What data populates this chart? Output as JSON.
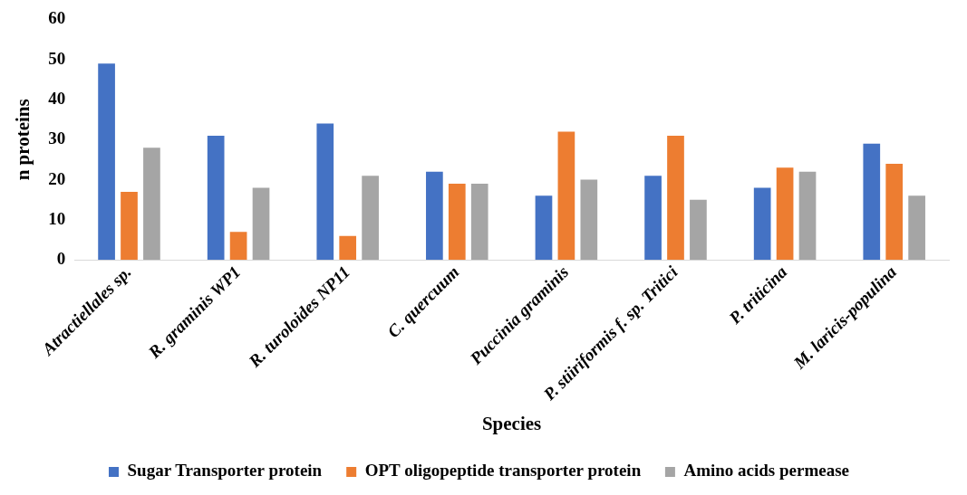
{
  "chart_data": {
    "type": "bar",
    "xlabel": "Species",
    "ylabel": "n proteins",
    "categories": [
      "Atractiellales sp.",
      "R. graminis WP1",
      "R. turoloides NP11",
      "C. quercuum",
      "Puccinia graminis",
      "P. stiiriformis f. sp. Tritici",
      "P. triticina",
      "M. laricis-populina"
    ],
    "series": [
      {
        "name": "Sugar Transporter protein",
        "color": "#4472c4",
        "values": [
          49,
          31,
          34,
          22,
          16,
          21,
          18,
          29
        ]
      },
      {
        "name": "OPT oligopeptide transporter protein",
        "color": "#ed7d31",
        "values": [
          17,
          7,
          6,
          19,
          32,
          31,
          23,
          24
        ]
      },
      {
        "name": "Amino acids permease",
        "color": "#a5a5a5",
        "values": [
          28,
          18,
          21,
          19,
          20,
          15,
          22,
          16
        ]
      }
    ],
    "ylim": [
      0,
      60
    ],
    "yticks": [
      0,
      10,
      20,
      30,
      40,
      50,
      60
    ],
    "grid": false,
    "legend": "bottom"
  }
}
